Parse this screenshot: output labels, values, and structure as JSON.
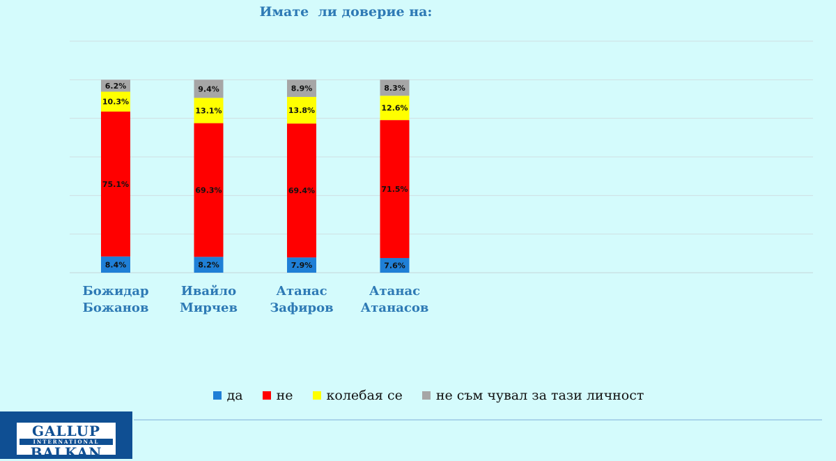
{
  "chart_data": {
    "type": "bar",
    "stacked": true,
    "title": "Имате  ли доверие на:",
    "categories": [
      [
        "Божидар",
        "Божанов"
      ],
      [
        "Ивайло",
        "Мирчев"
      ],
      [
        "Атанас",
        "Зафиров"
      ],
      [
        "Атанас",
        "Атанасов"
      ]
    ],
    "series": [
      {
        "name": "да",
        "color": "#1f7fd6",
        "values": [
          8.4,
          8.2,
          7.9,
          7.6
        ],
        "labels": [
          "8.4%",
          "8.2%",
          "7.9%",
          "7.6%"
        ]
      },
      {
        "name": "не",
        "color": "#ff0000",
        "values": [
          75.1,
          69.3,
          69.4,
          71.5
        ],
        "labels": [
          "75.1%",
          "69.3%",
          "69.4%",
          "71.5%"
        ]
      },
      {
        "name": "колебая се",
        "color": "#ffff00",
        "values": [
          10.3,
          13.1,
          13.8,
          12.6
        ],
        "labels": [
          "10.3%",
          "13.1%",
          "13.8%",
          "12.6%"
        ]
      },
      {
        "name": "не съм чувал за тази личност",
        "color": "#a6a6a6",
        "values": [
          6.2,
          9.4,
          8.9,
          8.3
        ],
        "labels": [
          "6.2%",
          "9.4%",
          "8.9%",
          "8.3%"
        ]
      }
    ],
    "ylim": [
      0,
      120
    ],
    "grid": true,
    "legend_position": "bottom"
  },
  "logo": {
    "top": "GALLUP",
    "middle": "INTERNATIONAL",
    "bottom": "BALKAN"
  }
}
